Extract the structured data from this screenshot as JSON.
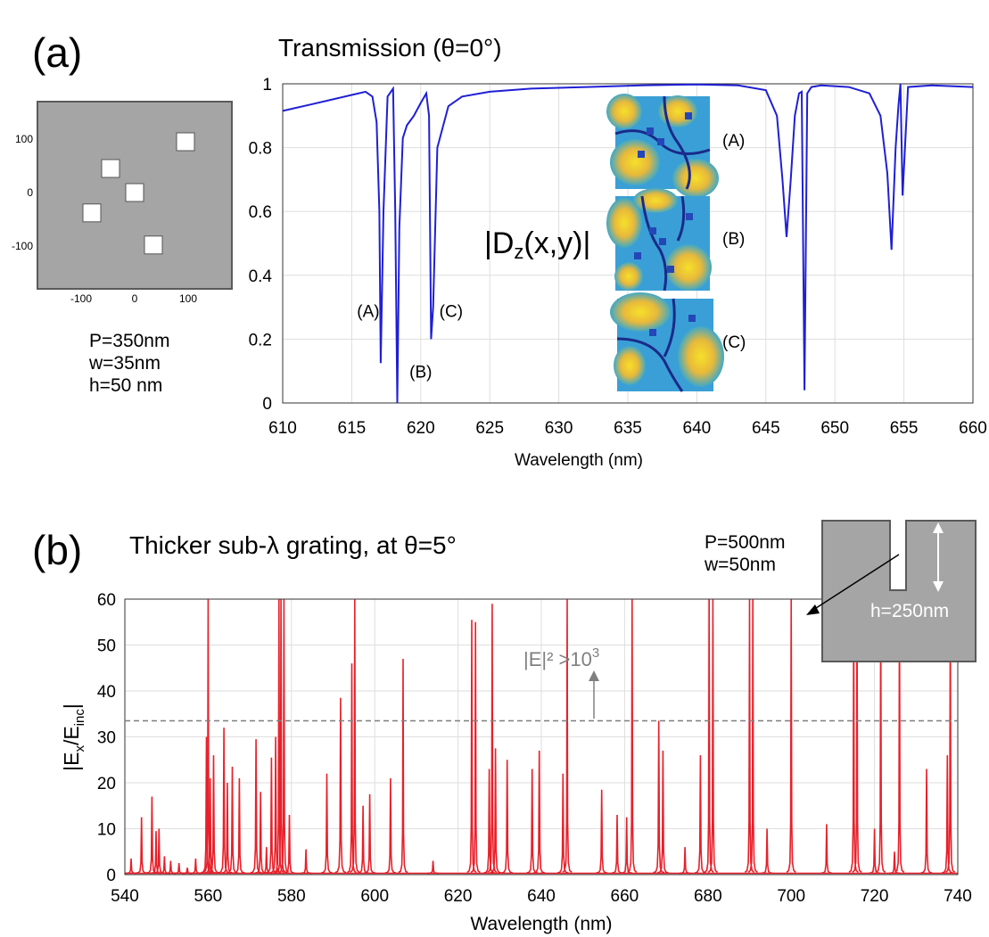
{
  "panel_a": {
    "label": "(a)",
    "title": "Transmission (θ=0°)",
    "params": [
      "P=350nm",
      "w=35nm",
      "h=50 nm"
    ],
    "unit_cell": {
      "xticks": [
        -100,
        0,
        100
      ],
      "yticks": [
        100,
        0,
        -100
      ],
      "squares_nm": [
        [
          95,
          95
        ],
        [
          -45,
          45
        ],
        [
          0,
          0
        ],
        [
          -80,
          -38
        ],
        [
          35,
          -98
        ]
      ]
    },
    "field_label": {
      "main": "|D",
      "sub": "z",
      "rest": "(x,y)|"
    },
    "inset_labels": [
      "(A)",
      "(B)",
      "(C)"
    ]
  },
  "panel_b": {
    "label": "(b)",
    "title": "Thicker sub-λ grating, at θ=5°",
    "params": [
      "P=500nm",
      "w=50nm"
    ],
    "inset_h": "h=250nm",
    "threshold_label": {
      "main": "|E|² >10",
      "sup": "3"
    }
  },
  "chart_data": [
    {
      "type": "line",
      "title": "Transmission (θ=0°)",
      "xlabel": "Wavelength (nm)",
      "ylabel": "",
      "xlim": [
        610,
        660
      ],
      "ylim": [
        0,
        1
      ],
      "xticks": [
        610,
        615,
        620,
        625,
        630,
        635,
        640,
        645,
        650,
        655,
        660
      ],
      "yticks": [
        0,
        0.2,
        0.4,
        0.6,
        0.8,
        1
      ],
      "grid": true,
      "color": "#1f1fd6",
      "x": [
        610,
        612,
        614,
        615,
        616,
        616.5,
        616.8,
        617,
        617.1,
        617.3,
        617.6,
        618,
        618.15,
        618.3,
        618.45,
        618.7,
        619,
        619.5,
        620,
        620.4,
        620.6,
        620.75,
        620.9,
        621.2,
        622,
        623,
        625,
        628,
        632,
        636,
        640,
        643,
        645,
        645.8,
        646.2,
        646.5,
        646.8,
        647.1,
        647.4,
        647.6,
        647.8,
        648,
        648.3,
        649,
        651,
        652.5,
        653.3,
        653.8,
        654.1,
        654.4,
        654.6,
        654.75,
        654.9,
        655.3,
        657,
        660
      ],
      "y": [
        0.915,
        0.935,
        0.955,
        0.965,
        0.975,
        0.96,
        0.88,
        0.6,
        0.125,
        0.6,
        0.96,
        0.985,
        0.6,
        0.0,
        0.55,
        0.83,
        0.87,
        0.9,
        0.94,
        0.97,
        0.9,
        0.2,
        0.3,
        0.8,
        0.93,
        0.96,
        0.975,
        0.985,
        0.99,
        0.995,
        0.998,
        0.995,
        0.98,
        0.9,
        0.7,
        0.52,
        0.7,
        0.9,
        0.97,
        0.975,
        0.04,
        0.97,
        0.99,
        0.995,
        0.99,
        0.97,
        0.9,
        0.72,
        0.48,
        0.8,
        0.93,
        1.0,
        0.65,
        0.99,
        0.995,
        0.99
      ],
      "annotations": [
        {
          "text": "(A)",
          "x": 616.2,
          "y": 0.27
        },
        {
          "text": "(B)",
          "x": 620.0,
          "y": 0.08
        },
        {
          "text": "(C)",
          "x": 622.2,
          "y": 0.27
        }
      ]
    },
    {
      "type": "line",
      "title": "Thicker sub-λ grating, at θ=5°",
      "xlabel": "Wavelength (nm)",
      "ylabel": {
        "main": "|E",
        "sub1": "x",
        "mid": "/E",
        "sub2": "inc",
        "end": "|"
      },
      "xlim": [
        540,
        740
      ],
      "ylim": [
        0,
        60
      ],
      "xticks": [
        540,
        560,
        580,
        600,
        620,
        640,
        660,
        680,
        700,
        720,
        740
      ],
      "yticks": [
        0,
        10,
        20,
        30,
        40,
        50,
        60
      ],
      "grid": true,
      "color": "#e8202a",
      "threshold": 33.5,
      "peaks": [
        [
          541.5,
          3.5
        ],
        [
          544,
          12.5
        ],
        [
          546.5,
          17
        ],
        [
          547.5,
          9.5
        ],
        [
          548.2,
          10
        ],
        [
          549.5,
          4
        ],
        [
          551,
          3
        ],
        [
          553,
          2.5
        ],
        [
          555,
          1.5
        ],
        [
          557,
          3.5
        ],
        [
          559.6,
          30
        ],
        [
          560,
          60
        ],
        [
          560.5,
          21
        ],
        [
          561.3,
          26
        ],
        [
          563.8,
          32
        ],
        [
          564.6,
          20
        ],
        [
          565.8,
          23.5
        ],
        [
          567.5,
          21
        ],
        [
          571.5,
          29.5
        ],
        [
          572.6,
          18
        ],
        [
          574,
          6
        ],
        [
          575.2,
          25.5
        ],
        [
          576.2,
          30
        ],
        [
          577,
          60
        ],
        [
          577.5,
          60
        ],
        [
          578.2,
          60
        ],
        [
          579.5,
          13
        ],
        [
          583.5,
          5.5
        ],
        [
          588.5,
          22
        ],
        [
          591.8,
          38.5
        ],
        [
          594.5,
          46
        ],
        [
          595.2,
          60
        ],
        [
          597.2,
          15
        ],
        [
          598.8,
          17.5
        ],
        [
          603.8,
          21
        ],
        [
          606.8,
          47
        ],
        [
          614,
          3
        ],
        [
          623.3,
          55.5
        ],
        [
          624.2,
          55
        ],
        [
          627.5,
          23
        ],
        [
          628.2,
          59
        ],
        [
          629,
          27.5
        ],
        [
          631.8,
          25
        ],
        [
          637.8,
          23
        ],
        [
          639.5,
          27
        ],
        [
          645.2,
          22
        ],
        [
          646.2,
          60
        ],
        [
          654.5,
          18.5
        ],
        [
          658.2,
          13
        ],
        [
          660.5,
          12.5
        ],
        [
          661.8,
          60
        ],
        [
          668.2,
          33.5
        ],
        [
          669.2,
          27
        ],
        [
          674.5,
          6
        ],
        [
          678.2,
          26
        ],
        [
          680.3,
          60
        ],
        [
          681.2,
          60
        ],
        [
          690,
          60
        ],
        [
          690.8,
          60
        ],
        [
          694.2,
          10
        ],
        [
          700,
          60
        ],
        [
          708.5,
          11
        ],
        [
          715,
          60
        ],
        [
          715.8,
          60
        ],
        [
          720,
          10
        ],
        [
          721.5,
          60
        ],
        [
          724.8,
          5
        ],
        [
          726,
          60
        ],
        [
          732.5,
          23
        ],
        [
          737.5,
          26
        ],
        [
          738.2,
          60
        ]
      ]
    }
  ]
}
